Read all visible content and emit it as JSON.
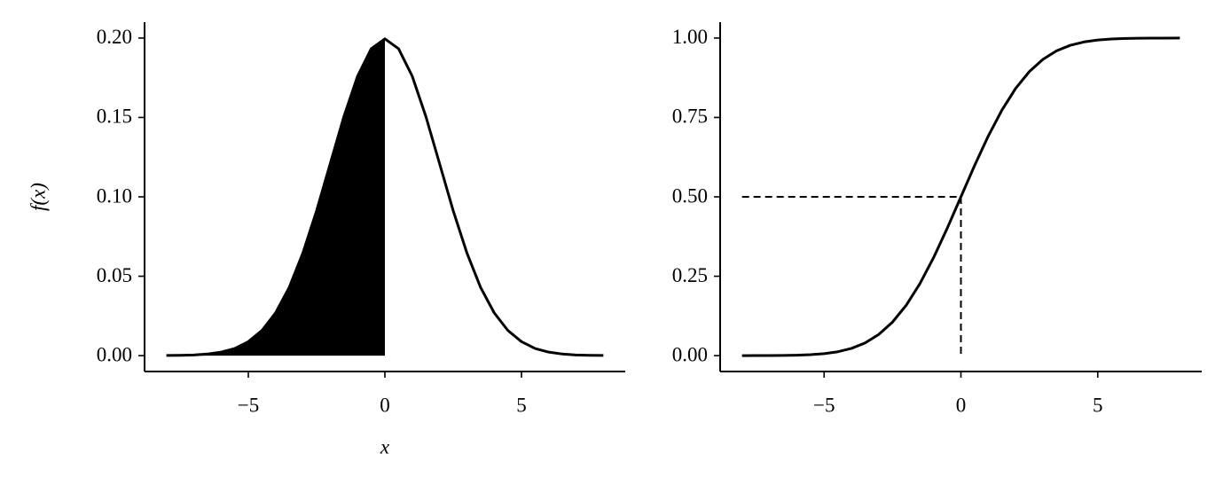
{
  "chart_data": [
    {
      "type": "line",
      "xlabel": "x",
      "ylabel": "f(x)",
      "color": "#000000",
      "shade_until_x": 0,
      "x": [
        -8,
        -7.5,
        -7,
        -6.5,
        -6,
        -5.5,
        -5,
        -4.5,
        -4,
        -3.5,
        -3,
        -2.5,
        -2,
        -1.5,
        -1,
        -0.5,
        0,
        0.5,
        1,
        1.5,
        2,
        2.5,
        3,
        3.5,
        4,
        4.5,
        5,
        5.5,
        6,
        6.5,
        7,
        7.5,
        8
      ],
      "values": [
        0.0001,
        0.0002,
        0.0004,
        0.001,
        0.0022,
        0.0045,
        0.0088,
        0.0159,
        0.027,
        0.0431,
        0.0648,
        0.0913,
        0.121,
        0.1506,
        0.176,
        0.1933,
        0.1995,
        0.1933,
        0.176,
        0.1506,
        0.121,
        0.0913,
        0.0648,
        0.0431,
        0.027,
        0.0159,
        0.0088,
        0.0045,
        0.0022,
        0.001,
        0.0004,
        0.0002,
        0.0001
      ],
      "xlim": [
        -8.8,
        8.8
      ],
      "ylim": [
        -0.01,
        0.21
      ],
      "xticks": [
        {
          "value": -5,
          "label": "−5"
        },
        0,
        5
      ],
      "yticks": [
        {
          "value": 0,
          "label": "0.00"
        },
        {
          "value": 0.05,
          "label": "0.05"
        },
        {
          "value": 0.1,
          "label": "0.10"
        },
        {
          "value": 0.15,
          "label": "0.15"
        },
        {
          "value": 0.2,
          "label": "0.20"
        }
      ]
    },
    {
      "type": "line",
      "color": "#000000",
      "reference": {
        "x": 0,
        "y": 0.5
      },
      "x": [
        -8,
        -7.5,
        -7,
        -6.5,
        -6,
        -5.5,
        -5,
        -4.5,
        -4,
        -3.5,
        -3,
        -2.5,
        -2,
        -1.5,
        -1,
        -0.5,
        0,
        0.5,
        1,
        1.5,
        2,
        2.5,
        3,
        3.5,
        4,
        4.5,
        5,
        5.5,
        6,
        6.5,
        7,
        7.5,
        8
      ],
      "values": [
        3e-05,
        9e-05,
        0.00023,
        0.00058,
        0.00135,
        0.00298,
        0.00621,
        0.01222,
        0.02275,
        0.04006,
        0.06681,
        0.10565,
        0.15866,
        0.22663,
        0.30854,
        0.40129,
        0.5,
        0.59871,
        0.69146,
        0.77337,
        0.84134,
        0.89435,
        0.93319,
        0.95994,
        0.97725,
        0.98778,
        0.99379,
        0.99702,
        0.99865,
        0.99942,
        0.99977,
        0.99991,
        0.99997
      ],
      "xlim": [
        -8.8,
        8.8
      ],
      "ylim": [
        -0.05,
        1.05
      ],
      "xticks": [
        {
          "value": -5,
          "label": "−5"
        },
        0,
        5
      ],
      "yticks": [
        {
          "value": 0,
          "label": "0.00"
        },
        {
          "value": 0.25,
          "label": "0.25"
        },
        {
          "value": 0.5,
          "label": "0.50"
        },
        {
          "value": 0.75,
          "label": "0.75"
        },
        {
          "value": 1,
          "label": "1.00"
        }
      ]
    }
  ]
}
